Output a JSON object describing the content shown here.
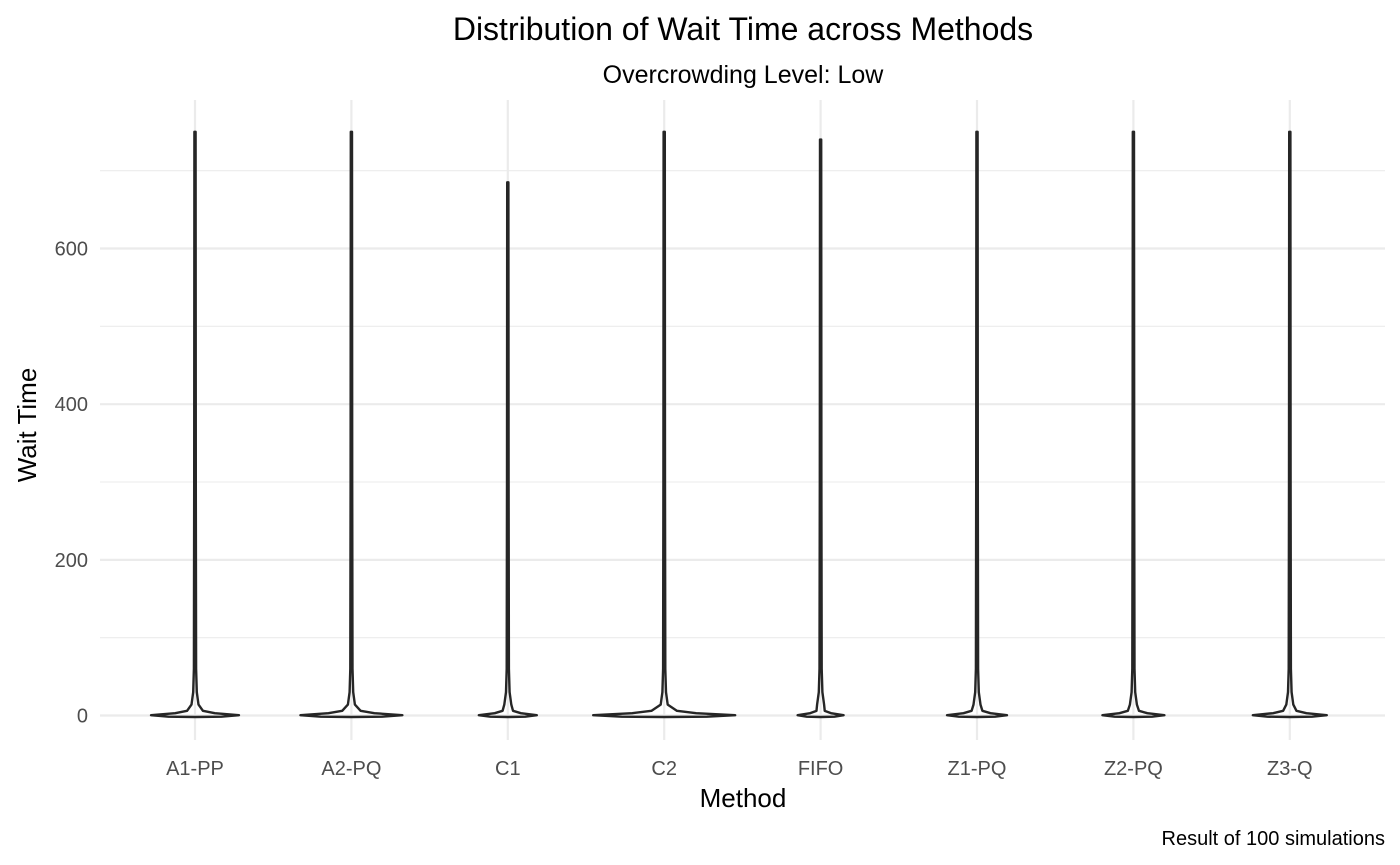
{
  "chart_data": {
    "type": "violin",
    "title": "Distribution of Wait Time across Methods",
    "subtitle": "Overcrowding Level: Low",
    "xlabel": "Method",
    "ylabel": "Wait Time",
    "caption": "Result of 100 simulations",
    "categories": [
      "A1-PP",
      "A2-PQ",
      "C1",
      "C2",
      "FIFO",
      "Z1-PQ",
      "Z2-PQ",
      "Z3-Q"
    ],
    "y_ticks": [
      "0",
      "200",
      "400",
      "600"
    ],
    "ylim": [
      -20,
      790
    ],
    "y_max": [
      750,
      750,
      685,
      750,
      740,
      750,
      750,
      750
    ],
    "grid": true,
    "legend": "none"
  }
}
